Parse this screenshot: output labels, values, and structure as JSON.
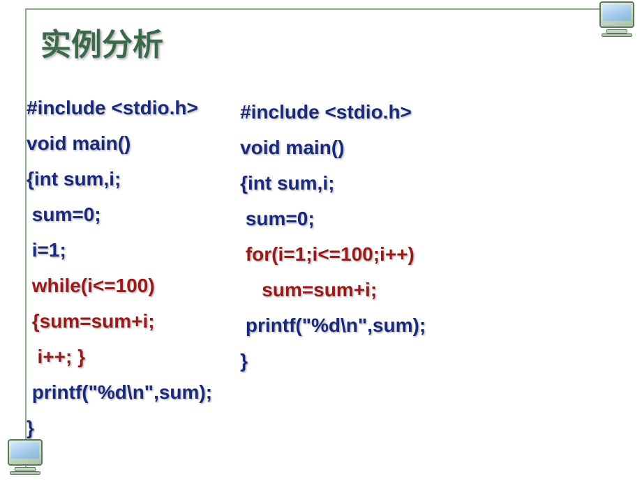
{
  "colors": {
    "frame_border": "#8aa88a",
    "title_color": "#3a6a4a",
    "code_normal": "#1a2a7a",
    "code_highlight": "#9a1a1a"
  },
  "title": "实例分析",
  "left_code": [
    {
      "text": "#include <stdio.h>",
      "hl": false
    },
    {
      "text": "void main()",
      "hl": false
    },
    {
      "text": "{int sum,i;",
      "hl": false
    },
    {
      "text": " sum=0;",
      "hl": false
    },
    {
      "text": " i=1;",
      "hl": false
    },
    {
      "text": " while(i<=100)",
      "hl": true
    },
    {
      "text": " {sum=sum+i;",
      "hl": true
    },
    {
      "text": "  i++; }",
      "hl": true
    },
    {
      "text": " printf(\"%d\\n\",sum);",
      "hl": false
    },
    {
      "text": "}",
      "hl": false
    }
  ],
  "right_code": [
    {
      "text": "#include <stdio.h>",
      "hl": false
    },
    {
      "text": "void main()",
      "hl": false
    },
    {
      "text": "{int sum,i;",
      "hl": false
    },
    {
      "text": " sum=0;",
      "hl": false
    },
    {
      "text": " for(i=1;i<=100;i++)",
      "hl": true
    },
    {
      "text": "    sum=sum+i;",
      "hl": true
    },
    {
      "text": " printf(\"%d\\n\",sum);",
      "hl": false
    },
    {
      "text": "}",
      "hl": false
    }
  ]
}
